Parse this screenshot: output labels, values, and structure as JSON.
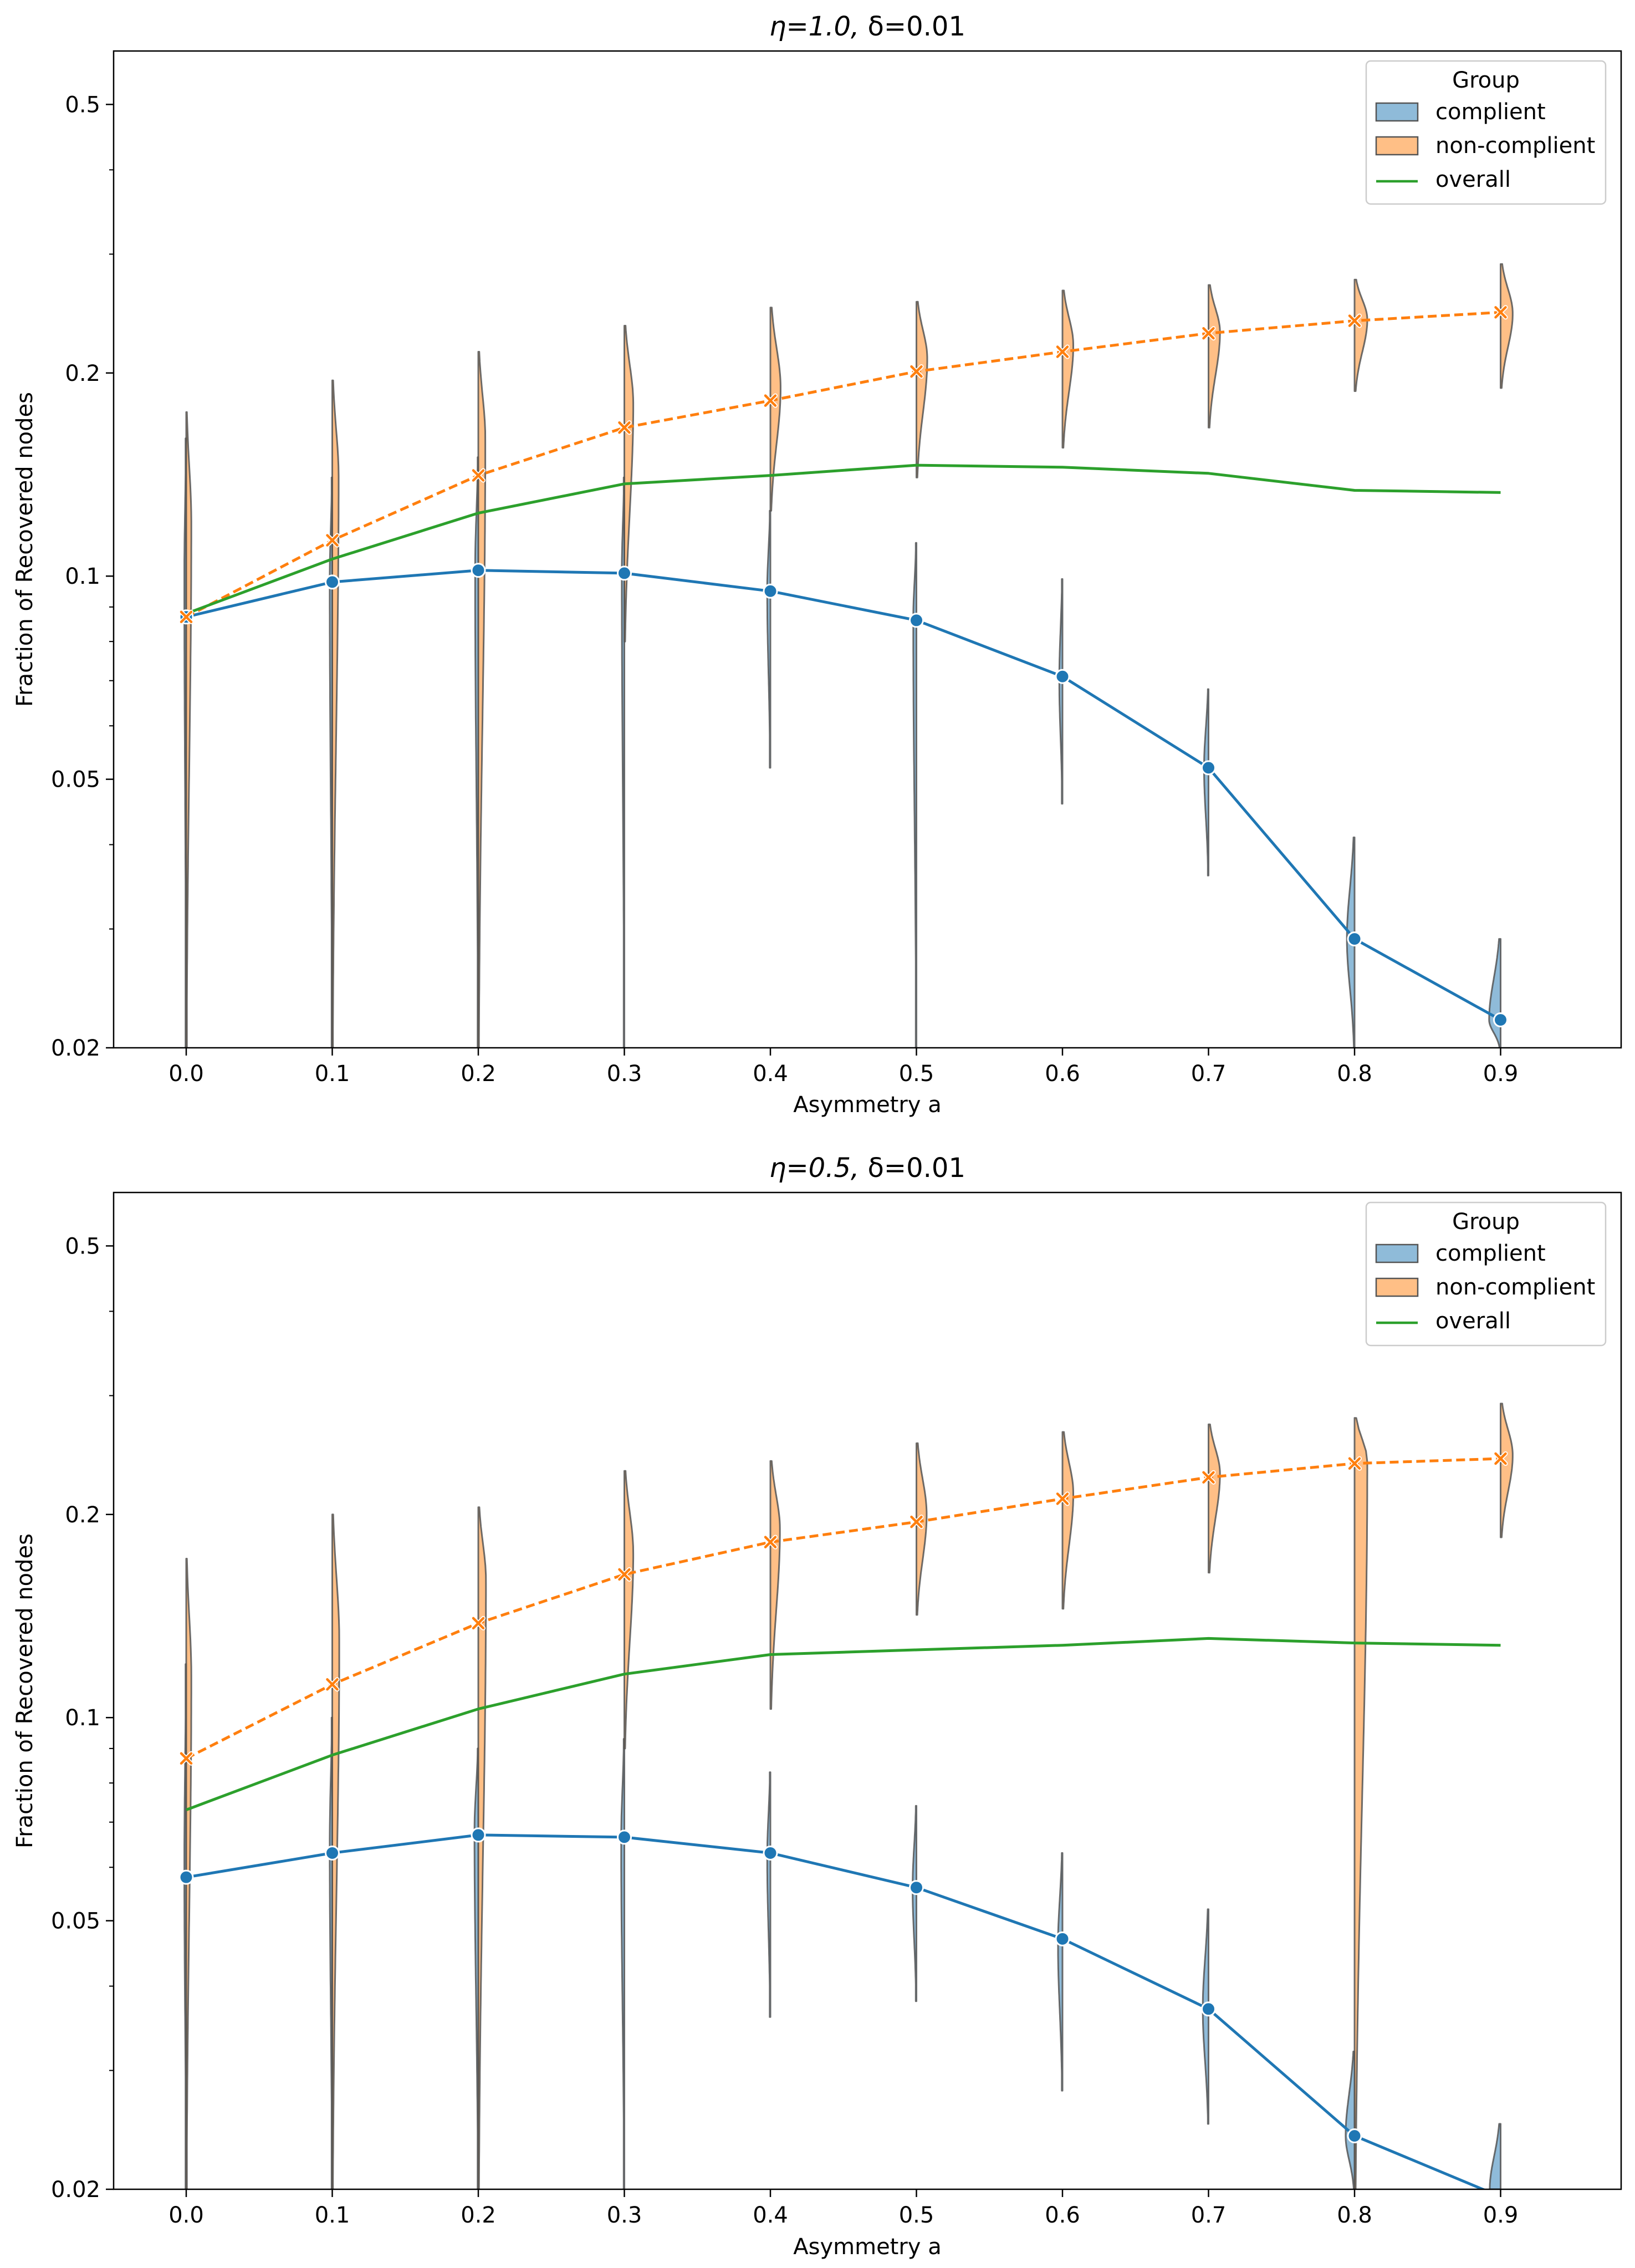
{
  "chart_data": [
    {
      "type": "violin+line",
      "title_prefix": "η=1.0, ",
      "title_suffix": "δ=0.01",
      "xlabel": "Asymmetry a",
      "ylabel": "Fraction of Recovered nodes",
      "yscale": "log",
      "ylim": [
        0.02,
        0.6
      ],
      "yticks": [
        0.02,
        0.05,
        0.1,
        0.2,
        0.5
      ],
      "ytick_labels": [
        "0.02",
        "0.05",
        "0.1",
        "0.2",
        "0.5"
      ],
      "categories": [
        "0.0",
        "0.1",
        "0.2",
        "0.3",
        "0.4",
        "0.5",
        "0.6",
        "0.7",
        "0.8",
        "0.9"
      ],
      "legend": {
        "title": "Group",
        "entries": [
          "complient",
          "non-complient",
          "overall"
        ],
        "position": "top-right"
      },
      "colors": {
        "complient": "#1f77b4",
        "non-complient": "#ff7f0e",
        "overall": "#2ca02c"
      },
      "series": [
        {
          "name": "complient",
          "values": [
            0.087,
            0.098,
            0.102,
            0.101,
            0.095,
            0.086,
            0.071,
            0.052,
            0.029,
            0.022
          ]
        },
        {
          "name": "non-complient",
          "values": [
            0.087,
            0.113,
            0.141,
            0.166,
            0.182,
            0.201,
            0.215,
            0.229,
            0.239,
            0.246
          ]
        },
        {
          "name": "overall",
          "values": [
            0.088,
            0.106,
            0.124,
            0.137,
            0.141,
            0.146,
            0.145,
            0.142,
            0.134,
            0.133
          ]
        }
      ],
      "violins": {
        "complient": [
          {
            "lo": 0.02,
            "hi": 0.16,
            "mode": 0.1,
            "width": 0.03
          },
          {
            "lo": 0.02,
            "hi": 0.14,
            "mode": 0.098,
            "width": 0.04
          },
          {
            "lo": 0.02,
            "hi": 0.15,
            "mode": 0.102,
            "width": 0.05
          },
          {
            "lo": 0.02,
            "hi": 0.14,
            "mode": 0.101,
            "width": 0.04
          },
          {
            "lo": 0.052,
            "hi": 0.125,
            "mode": 0.095,
            "width": 0.05
          },
          {
            "lo": 0.02,
            "hi": 0.112,
            "mode": 0.086,
            "width": 0.05
          },
          {
            "lo": 0.046,
            "hi": 0.099,
            "mode": 0.07,
            "width": 0.05
          },
          {
            "lo": 0.036,
            "hi": 0.068,
            "mode": 0.052,
            "width": 0.07
          },
          {
            "lo": 0.02,
            "hi": 0.041,
            "mode": 0.029,
            "width": 0.12
          },
          {
            "lo": 0.02,
            "hi": 0.029,
            "mode": 0.022,
            "width": 0.18
          }
        ],
        "non-complient": [
          {
            "lo": 0.02,
            "hi": 0.175,
            "mode": 0.12,
            "width": 0.08
          },
          {
            "lo": 0.02,
            "hi": 0.195,
            "mode": 0.14,
            "width": 0.1
          },
          {
            "lo": 0.02,
            "hi": 0.215,
            "mode": 0.16,
            "width": 0.11
          },
          {
            "lo": 0.08,
            "hi": 0.235,
            "mode": 0.18,
            "width": 0.14
          },
          {
            "lo": 0.125,
            "hi": 0.25,
            "mode": 0.19,
            "width": 0.16
          },
          {
            "lo": 0.14,
            "hi": 0.255,
            "mode": 0.21,
            "width": 0.17
          },
          {
            "lo": 0.155,
            "hi": 0.265,
            "mode": 0.22,
            "width": 0.17
          },
          {
            "lo": 0.166,
            "hi": 0.27,
            "mode": 0.23,
            "width": 0.18
          },
          {
            "lo": 0.188,
            "hi": 0.275,
            "mode": 0.24,
            "width": 0.2
          },
          {
            "lo": 0.19,
            "hi": 0.29,
            "mode": 0.245,
            "width": 0.19
          }
        ]
      }
    },
    {
      "type": "violin+line",
      "title_prefix": "η=0.5, ",
      "title_suffix": "δ=0.01",
      "xlabel": "Asymmetry a",
      "ylabel": "Fraction of Recovered nodes",
      "yscale": "log",
      "ylim": [
        0.02,
        0.6
      ],
      "yticks": [
        0.02,
        0.05,
        0.1,
        0.2,
        0.5
      ],
      "ytick_labels": [
        "0.02",
        "0.05",
        "0.1",
        "0.2",
        "0.5"
      ],
      "categories": [
        "0.0",
        "0.1",
        "0.2",
        "0.3",
        "0.4",
        "0.5",
        "0.6",
        "0.7",
        "0.8",
        "0.9"
      ],
      "legend": {
        "title": "Group",
        "entries": [
          "complient",
          "non-complient",
          "overall"
        ],
        "position": "top-right"
      },
      "colors": {
        "complient": "#1f77b4",
        "non-complient": "#ff7f0e",
        "overall": "#2ca02c"
      },
      "series": [
        {
          "name": "complient",
          "values": [
            0.058,
            0.063,
            0.067,
            0.0665,
            0.063,
            0.056,
            0.047,
            0.037,
            0.024,
            0.0195
          ]
        },
        {
          "name": "non-complient",
          "values": [
            0.087,
            0.112,
            0.138,
            0.163,
            0.182,
            0.195,
            0.211,
            0.227,
            0.238,
            0.242
          ]
        },
        {
          "name": "overall",
          "values": [
            0.073,
            0.088,
            0.103,
            0.116,
            0.124,
            0.126,
            0.128,
            0.131,
            0.129,
            0.128
          ]
        }
      ],
      "violins": {
        "complient": [
          {
            "lo": 0.02,
            "hi": 0.12,
            "mode": 0.06,
            "width": 0.03
          },
          {
            "lo": 0.02,
            "hi": 0.1,
            "mode": 0.065,
            "width": 0.04
          },
          {
            "lo": 0.02,
            "hi": 0.09,
            "mode": 0.068,
            "width": 0.06
          },
          {
            "lo": 0.02,
            "hi": 0.093,
            "mode": 0.066,
            "width": 0.05
          },
          {
            "lo": 0.036,
            "hi": 0.083,
            "mode": 0.062,
            "width": 0.05
          },
          {
            "lo": 0.038,
            "hi": 0.074,
            "mode": 0.056,
            "width": 0.06
          },
          {
            "lo": 0.028,
            "hi": 0.063,
            "mode": 0.046,
            "width": 0.07
          },
          {
            "lo": 0.025,
            "hi": 0.052,
            "mode": 0.037,
            "width": 0.09
          },
          {
            "lo": 0.02,
            "hi": 0.032,
            "mode": 0.024,
            "width": 0.14
          },
          {
            "lo": 0.02,
            "hi": 0.025,
            "mode": 0.02,
            "width": 0.17
          }
        ],
        "non-complient": [
          {
            "lo": 0.02,
            "hi": 0.172,
            "mode": 0.115,
            "width": 0.08
          },
          {
            "lo": 0.02,
            "hi": 0.2,
            "mode": 0.13,
            "width": 0.11
          },
          {
            "lo": 0.02,
            "hi": 0.205,
            "mode": 0.16,
            "width": 0.12
          },
          {
            "lo": 0.09,
            "hi": 0.232,
            "mode": 0.175,
            "width": 0.14
          },
          {
            "lo": 0.103,
            "hi": 0.24,
            "mode": 0.19,
            "width": 0.15
          },
          {
            "lo": 0.142,
            "hi": 0.255,
            "mode": 0.2,
            "width": 0.16
          },
          {
            "lo": 0.145,
            "hi": 0.265,
            "mode": 0.215,
            "width": 0.17
          },
          {
            "lo": 0.164,
            "hi": 0.272,
            "mode": 0.23,
            "width": 0.18
          },
          {
            "lo": 0.02,
            "hi": 0.278,
            "mode": 0.24,
            "width": 0.2
          },
          {
            "lo": 0.185,
            "hi": 0.292,
            "mode": 0.245,
            "width": 0.19
          }
        ]
      }
    }
  ]
}
